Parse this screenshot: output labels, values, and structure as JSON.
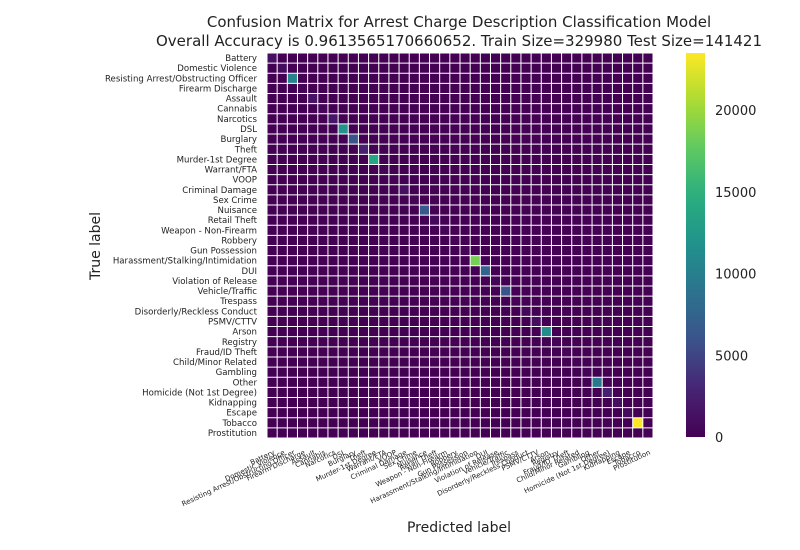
{
  "chart_data": {
    "type": "heatmap",
    "title": "Confusion Matrix for Arrest Charge Description Classification Model",
    "subtitle": "Overall Accuracy is 0.9613565170660652. Train Size=329980 Test Size=141421",
    "xlabel": "Predicted label",
    "ylabel": "True label",
    "labels": [
      "Battery",
      "Domestic Violence",
      "Resisting Arrest/Obstructing Officer",
      "Firearm Discharge",
      "Assault",
      "Cannabis",
      "Narcotics",
      "DSL",
      "Burglary",
      "Theft",
      "Murder-1st Degree",
      "Warrant/FTA",
      "VOOP",
      "Criminal Damage",
      "Sex Crime",
      "Nuisance",
      "Retail Theft",
      "Weapon - Non-Firearm",
      "Robbery",
      "Gun Possession",
      "Harassment/Stalking/Intimidation",
      "DUI",
      "Violation of Release",
      "Vehicle/Traffic",
      "Trespass",
      "Disorderly/Reckless Conduct",
      "PSMV/CTTV",
      "Arson",
      "Registry",
      "Fraud/ID Theft",
      "Child/Minor Related",
      "Gambling",
      "Other",
      "Homicide (Not 1st Degree)",
      "Kidnapping",
      "Escape",
      "Tobacco",
      "Prostitution"
    ],
    "diagonal": [
      1200,
      900,
      10500,
      300,
      1500,
      400,
      1800,
      12000,
      6000,
      2500,
      14000,
      300,
      200,
      1200,
      300,
      6500,
      500,
      300,
      200,
      400,
      18500,
      7500,
      300,
      6000,
      200,
      500,
      1000,
      11500,
      200,
      400,
      200,
      150,
      9500,
      2500,
      1200,
      800,
      23500,
      200
    ],
    "colorbar": {
      "min": 0,
      "max": 23500,
      "ticks": [
        0,
        5000,
        10000,
        15000,
        20000
      ]
    },
    "grid": true,
    "colormap": "viridis",
    "colors": {
      "grid": "#ffffff",
      "low": "#440154",
      "high": "#fde725"
    }
  }
}
